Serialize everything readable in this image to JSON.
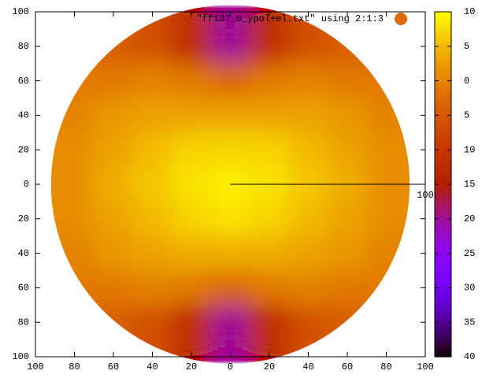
{
  "chart_data": {
    "type": "heatmap",
    "series": [
      {
        "name": "\"ff137_0_ypol+el.txt\" using 2:1:3",
        "color": "#e06a10",
        "z": [
          [
            null,
            -4,
            -6,
            -12,
            -20,
            -12,
            -6,
            -4,
            null
          ],
          [
            -1,
            -1,
            0,
            -1,
            -3,
            -1,
            0,
            -1,
            -1
          ],
          [
            0,
            2,
            3,
            3,
            3,
            3,
            3,
            2,
            0
          ],
          [
            1,
            3,
            5,
            7,
            7,
            7,
            5,
            3,
            1
          ],
          [
            1,
            4,
            6,
            8,
            9,
            8,
            6,
            4,
            1
          ],
          [
            1,
            3,
            5,
            7,
            8,
            7,
            5,
            3,
            1
          ],
          [
            0,
            2,
            3,
            4,
            4,
            4,
            3,
            2,
            0
          ],
          [
            -1,
            -1,
            0,
            -1,
            -3,
            -1,
            0,
            -1,
            -1
          ],
          [
            null,
            -4,
            -6,
            -12,
            -20,
            -12,
            -6,
            -4,
            null
          ]
        ]
      }
    ],
    "x": [
      -80,
      -60,
      -40,
      -20,
      0,
      20,
      40,
      60,
      80
    ],
    "y": [
      80,
      60,
      40,
      20,
      0,
      -20,
      -40,
      -60,
      -80
    ],
    "xlim": [
      -100,
      100
    ],
    "ylim": [
      -100,
      100
    ],
    "xticks": [
      {
        "value": -100,
        "label": "100"
      },
      {
        "value": -80,
        "label": "80"
      },
      {
        "value": -60,
        "label": "60"
      },
      {
        "value": -40,
        "label": "40"
      },
      {
        "value": -20,
        "label": "20"
      },
      0,
      20,
      40,
      60,
      80,
      100
    ],
    "yticks": [
      {
        "value": -100,
        "label": "100"
      },
      {
        "value": -80,
        "label": "80"
      },
      {
        "value": -60,
        "label": "60"
      },
      {
        "value": -40,
        "label": "40"
      },
      {
        "value": -20,
        "label": "20"
      },
      0,
      20,
      40,
      60,
      80,
      100
    ],
    "cblim": [
      -40,
      10
    ],
    "cbticks": [
      10,
      5,
      0,
      {
        "value": -5,
        "label": "5"
      },
      {
        "value": -10,
        "label": "10"
      },
      {
        "value": -15,
        "label": "15"
      },
      {
        "value": -20,
        "label": "20"
      },
      {
        "value": -25,
        "label": "25"
      },
      {
        "value": -30,
        "label": "30"
      },
      {
        "value": -35,
        "label": "35"
      },
      {
        "value": -40,
        "label": "40"
      }
    ],
    "annotation": "100"
  }
}
